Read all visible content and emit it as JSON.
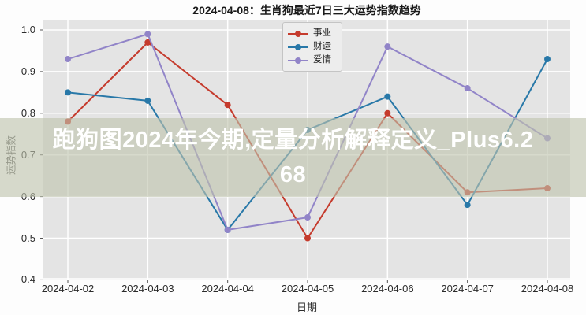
{
  "chart_title": "2024-04-08：生肖狗最近7日三大运势指数趋势",
  "watermark": {
    "full_text": "跑狗图2024年今期,定量分析解释定义_Plus6.268",
    "line1": "跑狗图2024年今期,定量分析解释定义_Plus6.2",
    "line2": "68",
    "band_color": "rgba(190,196,172,0.62)",
    "text_color": "#ffffff"
  },
  "chart_data": {
    "type": "line",
    "title": "2024-04-08：生肖狗最近7日三大运势指数趋势",
    "xlabel": "日期",
    "ylabel": "运势指数",
    "x": [
      "2024-04-02",
      "2024-04-03",
      "2024-04-04",
      "2024-04-05",
      "2024-04-06",
      "2024-04-07",
      "2024-04-08"
    ],
    "series": [
      {
        "name": "事业",
        "color": "#c53b2d",
        "values": [
          0.78,
          0.97,
          0.82,
          0.5,
          0.8,
          0.61,
          0.62
        ]
      },
      {
        "name": "财运",
        "color": "#2878a8",
        "values": [
          0.85,
          0.83,
          0.52,
          0.76,
          0.84,
          0.58,
          0.93
        ]
      },
      {
        "name": "爱情",
        "color": "#9184c8",
        "values": [
          0.93,
          0.99,
          0.52,
          0.55,
          0.96,
          0.86,
          0.74
        ]
      }
    ],
    "ylim": [
      0.4,
      1.025
    ],
    "yticks": [
      0.4,
      0.5,
      0.6,
      0.7,
      0.8,
      0.9,
      1.0
    ],
    "grid": true,
    "grid_color": "#ffffff",
    "plot_background": "#e4e4e4",
    "legend_position": "top-center"
  }
}
